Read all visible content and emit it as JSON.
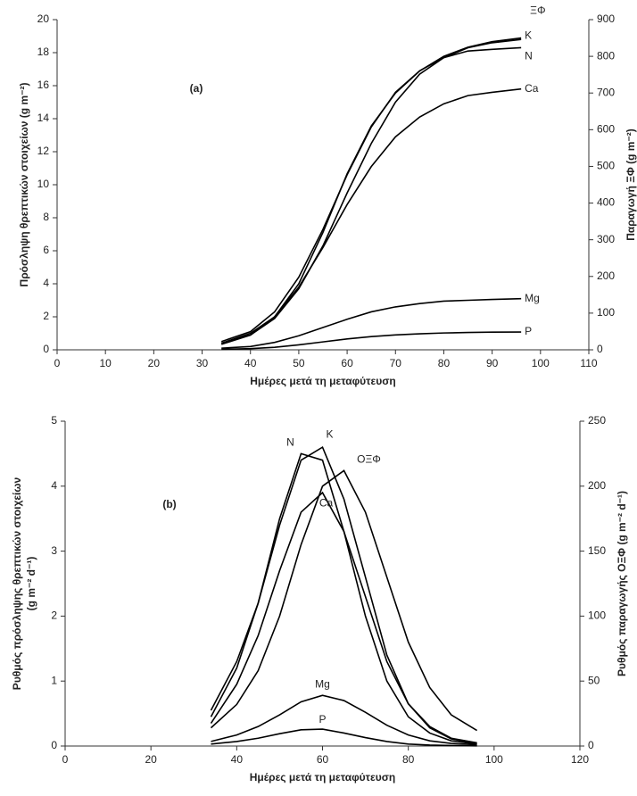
{
  "chart_data": [
    {
      "type": "line",
      "annotation": "(a)",
      "x_label": "Ημέρες μετά τη μεταφύτευση",
      "y_label": [
        "Πρόσληψη θρεπτικών στοιχείων (g m⁻²)"
      ],
      "y2_label": "Παραγωγή ΞΦ (g m⁻²)",
      "x": [
        34,
        40,
        45,
        50,
        55,
        60,
        65,
        70,
        75,
        80,
        85,
        90,
        96
      ],
      "xlim": [
        0,
        110
      ],
      "xticks": [
        0,
        10,
        20,
        30,
        40,
        50,
        60,
        70,
        80,
        90,
        100,
        110
      ],
      "ylim": [
        0,
        20
      ],
      "yticks": [
        0,
        2,
        4,
        6,
        8,
        10,
        12,
        14,
        16,
        18,
        20
      ],
      "y2lim": [
        0,
        900
      ],
      "y2ticks": [
        0,
        100,
        200,
        300,
        400,
        500,
        600,
        700,
        800,
        900
      ],
      "series": [
        {
          "name": "ΞΦ",
          "color": "#000000",
          "axis": "y2",
          "values": [
            15,
            40,
            90,
            180,
            320,
            480,
            610,
            700,
            760,
            800,
            825,
            840,
            850
          ]
        },
        {
          "name": "K",
          "color": "#000000",
          "values": [
            0.4,
            0.9,
            1.9,
            3.7,
            6.3,
            9.5,
            12.5,
            15,
            16.7,
            17.7,
            18.3,
            18.6,
            18.8
          ]
        },
        {
          "name": "N",
          "color": "#000000",
          "values": [
            0.5,
            1.1,
            2.3,
            4.4,
            7.3,
            10.6,
            13.5,
            15.6,
            16.9,
            17.7,
            18.1,
            18.2,
            18.3
          ]
        },
        {
          "name": "Ca",
          "color": "#000000",
          "values": [
            0.4,
            1.0,
            2.0,
            3.8,
            6.2,
            8.8,
            11.1,
            12.9,
            14.1,
            14.9,
            15.4,
            15.6,
            15.8
          ]
        },
        {
          "name": "Mg",
          "color": "#000000",
          "values": [
            0.1,
            0.2,
            0.45,
            0.85,
            1.35,
            1.85,
            2.3,
            2.6,
            2.8,
            2.95,
            3.0,
            3.05,
            3.1
          ]
        },
        {
          "name": "P",
          "color": "#000000",
          "values": [
            0.03,
            0.07,
            0.15,
            0.3,
            0.48,
            0.66,
            0.8,
            0.9,
            0.97,
            1.02,
            1.05,
            1.07,
            1.08
          ]
        }
      ]
    },
    {
      "type": "line",
      "annotation": "(b)",
      "x_label": "Ημέρες μετά τη μεταφύτευση",
      "y_label": [
        "Ρυθμός πρόσληψης θρεπτικών στοιχείων",
        "(g m⁻² d⁻¹)"
      ],
      "y2_label": "Ρυθμός παραγωγής ΟΞΦ (g m⁻² d⁻¹)",
      "x": [
        34,
        40,
        45,
        50,
        55,
        60,
        65,
        70,
        75,
        80,
        85,
        90,
        96
      ],
      "xlim": [
        0,
        120
      ],
      "xticks": [
        0,
        20,
        40,
        60,
        80,
        100,
        120
      ],
      "ylim": [
        0,
        5
      ],
      "yticks": [
        0,
        1,
        2,
        3,
        4,
        5
      ],
      "y2lim": [
        0,
        250
      ],
      "y2ticks": [
        0,
        50,
        100,
        150,
        200,
        250
      ],
      "series": [
        {
          "name": "N",
          "color": "#000000",
          "values": [
            0.45,
            1.2,
            2.2,
            3.5,
            4.5,
            4.4,
            3.3,
            2.0,
            1.0,
            0.45,
            0.2,
            0.08,
            0.03
          ]
        },
        {
          "name": "K",
          "color": "#000000",
          "values": [
            0.55,
            1.3,
            2.2,
            3.4,
            4.4,
            4.6,
            3.8,
            2.6,
            1.4,
            0.65,
            0.28,
            0.11,
            0.04
          ]
        },
        {
          "name": "ΟΞΦ",
          "color": "#000000",
          "axis": "y2",
          "values": [
            14,
            32,
            58,
            100,
            155,
            200,
            212,
            180,
            130,
            80,
            45,
            24,
            12
          ]
        },
        {
          "name": "Ca",
          "color": "#000000",
          "values": [
            0.35,
            0.95,
            1.7,
            2.7,
            3.6,
            3.9,
            3.3,
            2.3,
            1.3,
            0.65,
            0.3,
            0.12,
            0.05
          ]
        },
        {
          "name": "Mg",
          "color": "#000000",
          "values": [
            0.07,
            0.17,
            0.3,
            0.48,
            0.68,
            0.78,
            0.7,
            0.52,
            0.32,
            0.17,
            0.08,
            0.04,
            0.02
          ]
        },
        {
          "name": "P",
          "color": "#000000",
          "values": [
            0.03,
            0.07,
            0.12,
            0.19,
            0.25,
            0.26,
            0.2,
            0.13,
            0.07,
            0.03,
            0.015,
            0.008,
            0.003
          ]
        }
      ]
    }
  ]
}
